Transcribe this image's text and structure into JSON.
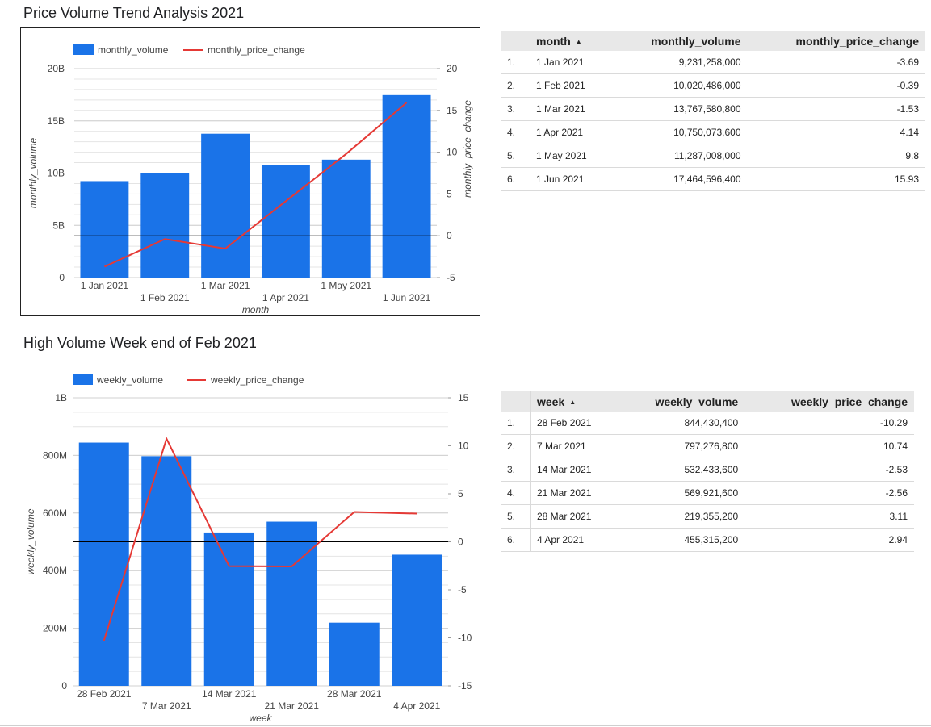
{
  "charts": [
    {
      "title": "Price Volume Trend Analysis 2021",
      "xlabel": "month",
      "ylabel_left": "monthly_volume",
      "ylabel_right": "monthly_price_change",
      "legend": [
        "monthly_volume",
        "monthly_price_change"
      ]
    },
    {
      "title": "High Volume Week end of Feb 2021",
      "xlabel": "week",
      "ylabel_left": "weekly_volume",
      "ylabel_right": "",
      "legend": [
        "weekly_volume",
        "weekly_price_change"
      ]
    }
  ],
  "chart_data": [
    {
      "type": "bar",
      "title": "Price Volume Trend Analysis 2021",
      "categories": [
        "1 Jan 2021",
        "1 Feb 2021",
        "1 Mar 2021",
        "1 Apr 2021",
        "1 May 2021",
        "1 Jun 2021"
      ],
      "series": [
        {
          "name": "monthly_volume",
          "type": "bar",
          "axis": "left",
          "values": [
            9231258000,
            10020486000,
            13767580800,
            10750073600,
            11287008000,
            17464596400
          ]
        },
        {
          "name": "monthly_price_change",
          "type": "line",
          "axis": "right",
          "values": [
            -3.69,
            -0.39,
            -1.53,
            4.14,
            9.8,
            15.93
          ]
        }
      ],
      "xlabel": "month",
      "ylabel": "monthly_volume",
      "y2label": "monthly_price_change",
      "ylim": [
        0,
        20000000000
      ],
      "y2lim": [
        -5,
        20
      ],
      "yticks": [
        "0",
        "5B",
        "10B",
        "15B",
        "20B"
      ],
      "y2ticks": [
        "-5",
        "0",
        "5",
        "10",
        "15",
        "20"
      ],
      "grid": true,
      "legend": "top-left",
      "colors": {
        "bar": "#1a73e8",
        "line": "#e53935",
        "zero": "#000000"
      }
    },
    {
      "type": "bar",
      "title": "High Volume Week end of Feb 2021",
      "categories": [
        "28 Feb 2021",
        "7 Mar 2021",
        "14 Mar 2021",
        "21 Mar 2021",
        "28 Mar 2021",
        "4 Apr 2021"
      ],
      "series": [
        {
          "name": "weekly_volume",
          "type": "bar",
          "axis": "left",
          "values": [
            844430400,
            797276800,
            532433600,
            569921600,
            219355200,
            455315200
          ]
        },
        {
          "name": "weekly_price_change",
          "type": "line",
          "axis": "right",
          "values": [
            -10.29,
            10.74,
            -2.53,
            -2.56,
            3.11,
            2.94
          ]
        }
      ],
      "xlabel": "week",
      "ylabel": "weekly_volume",
      "ylim": [
        0,
        1000000000
      ],
      "y2lim": [
        -15,
        15
      ],
      "yticks": [
        "0",
        "200M",
        "400M",
        "600M",
        "800M",
        "1B"
      ],
      "y2ticks": [
        "-15",
        "-10",
        "-5",
        "0",
        "5",
        "10",
        "15"
      ],
      "grid": true,
      "legend": "top-left",
      "colors": {
        "bar": "#1a73e8",
        "line": "#e53935",
        "zero": "#000000"
      }
    }
  ],
  "tables": [
    {
      "headers": [
        "month",
        "monthly_volume",
        "monthly_price_change"
      ],
      "rows": [
        [
          "1.",
          "1 Jan 2021",
          "9,231,258,000",
          "-3.69"
        ],
        [
          "2.",
          "1 Feb 2021",
          "10,020,486,000",
          "-0.39"
        ],
        [
          "3.",
          "1 Mar 2021",
          "13,767,580,800",
          "-1.53"
        ],
        [
          "4.",
          "1 Apr 2021",
          "10,750,073,600",
          "4.14"
        ],
        [
          "5.",
          "1 May 2021",
          "11,287,008,000",
          "9.8"
        ],
        [
          "6.",
          "1 Jun 2021",
          "17,464,596,400",
          "15.93"
        ]
      ]
    },
    {
      "headers": [
        "week",
        "weekly_volume",
        "weekly_price_change"
      ],
      "rows": [
        [
          "1.",
          "28 Feb 2021",
          "844,430,400",
          "-10.29"
        ],
        [
          "2.",
          "7 Mar 2021",
          "797,276,800",
          "10.74"
        ],
        [
          "3.",
          "14 Mar 2021",
          "532,433,600",
          "-2.53"
        ],
        [
          "4.",
          "21 Mar 2021",
          "569,921,600",
          "-2.56"
        ],
        [
          "5.",
          "28 Mar 2021",
          "219,355,200",
          "3.11"
        ],
        [
          "6.",
          "4 Apr 2021",
          "455,315,200",
          "2.94"
        ]
      ]
    }
  ]
}
